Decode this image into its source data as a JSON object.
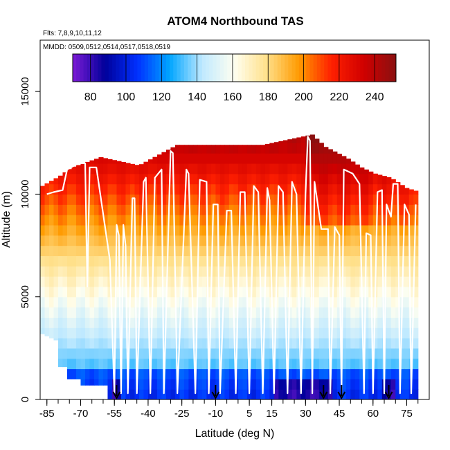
{
  "chart_data": {
    "type": "heatmap",
    "title": "ATOM4 Northbound TAS",
    "flights_note": "Flts: 7,8,9,10,11,12",
    "dates_note": "MMDD: 0509,0512,0514,0517,0518,0519",
    "xlabel": "Latitude (deg N)",
    "ylabel": "Altitude (m)",
    "xlim": [
      -88,
      85
    ],
    "ylim": [
      0,
      17500
    ],
    "x_ticks": [
      -85,
      -70,
      -55,
      -40,
      -25,
      -10,
      5,
      15,
      30,
      45,
      60,
      75
    ],
    "x_tick_labels": [
      "-85",
      "-70",
      "-55",
      "-40",
      "-25",
      "-10",
      "5",
      "15",
      "30",
      "45",
      "60",
      "75"
    ],
    "y_ticks": [
      0,
      5000,
      10000,
      15000
    ],
    "y_tick_labels": [
      "0",
      "5000",
      "10000",
      "15000"
    ],
    "colorbar": {
      "min": 70,
      "max": 252,
      "ticks": [
        80,
        100,
        120,
        140,
        160,
        180,
        200,
        220,
        240
      ],
      "tick_labels": [
        "80",
        "100",
        "120",
        "140",
        "160",
        "180",
        "200",
        "220",
        "240"
      ],
      "colors": [
        "#7d1bd6",
        "#00009a",
        "#0030ff",
        "#00a5ff",
        "#bfe9ff",
        "#fffff0",
        "#ffe08a",
        "#ff9a00",
        "#ff2000",
        "#d00000",
        "#8a1010"
      ]
    },
    "ceiling_profile": [
      {
        "lat": -88,
        "top": 10400
      },
      {
        "lat": -80,
        "top": 10900
      },
      {
        "lat": -75,
        "top": 11300
      },
      {
        "lat": -62,
        "top": 11800
      },
      {
        "lat": -45,
        "top": 11400
      },
      {
        "lat": -28,
        "top": 12400
      },
      {
        "lat": -10,
        "top": 12400
      },
      {
        "lat": 10,
        "top": 12400
      },
      {
        "lat": 32,
        "top": 12900
      },
      {
        "lat": 38,
        "top": 12300
      },
      {
        "lat": 47,
        "top": 11800
      },
      {
        "lat": 54,
        "top": 11300
      },
      {
        "lat": 60,
        "top": 11000
      },
      {
        "lat": 67,
        "top": 10800
      },
      {
        "lat": 74,
        "top": 10300
      },
      {
        "lat": 80,
        "top": 10100
      }
    ],
    "flight_track": [
      [
        -85,
        10000
      ],
      [
        -82,
        10100
      ],
      [
        -78,
        10200
      ],
      [
        -76,
        11200
      ],
      [
        -71,
        11500
      ],
      [
        -68,
        11500
      ],
      [
        -67,
        5500
      ],
      [
        -66,
        11300
      ],
      [
        -63,
        11300
      ],
      [
        -57,
        6800
      ],
      [
        -55,
        300
      ],
      [
        -54,
        8500
      ],
      [
        -53,
        8000
      ],
      [
        -52,
        300
      ],
      [
        -51,
        8500
      ],
      [
        -50,
        7500
      ],
      [
        -49,
        300
      ],
      [
        -47,
        9800
      ],
      [
        -46,
        9800
      ],
      [
        -45,
        300
      ],
      [
        -42,
        10600
      ],
      [
        -41,
        10800
      ],
      [
        -39,
        300
      ],
      [
        -37,
        10800
      ],
      [
        -34,
        11200
      ],
      [
        -33,
        300
      ],
      [
        -30,
        12100
      ],
      [
        -29,
        12000
      ],
      [
        -27,
        300
      ],
      [
        -23,
        11200
      ],
      [
        -22,
        11000
      ],
      [
        -19,
        300
      ],
      [
        -17,
        10700
      ],
      [
        -14,
        10600
      ],
      [
        -13,
        300
      ],
      [
        -11,
        9500
      ],
      [
        -9,
        9500
      ],
      [
        -8,
        300
      ],
      [
        -5,
        9200
      ],
      [
        -3,
        9200
      ],
      [
        -1,
        300
      ],
      [
        1,
        10100
      ],
      [
        3,
        10100
      ],
      [
        5,
        300
      ],
      [
        7,
        10400
      ],
      [
        9,
        10100
      ],
      [
        11,
        300
      ],
      [
        13,
        10300
      ],
      [
        14,
        9700
      ],
      [
        16,
        300
      ],
      [
        18,
        10400
      ],
      [
        20,
        10100
      ],
      [
        22,
        300
      ],
      [
        24,
        10600
      ],
      [
        26,
        10000
      ],
      [
        28,
        300
      ],
      [
        30,
        10000
      ],
      [
        31,
        12800
      ],
      [
        32,
        12600
      ],
      [
        33,
        300
      ],
      [
        34,
        10600
      ],
      [
        37,
        8300
      ],
      [
        40,
        8300
      ],
      [
        41,
        300
      ],
      [
        43,
        8400
      ],
      [
        45,
        8000
      ],
      [
        46,
        300
      ],
      [
        47,
        11200
      ],
      [
        51,
        11000
      ],
      [
        54,
        10500
      ],
      [
        56,
        300
      ],
      [
        57,
        8100
      ],
      [
        59,
        8000
      ],
      [
        60,
        300
      ],
      [
        62,
        10100
      ],
      [
        64,
        10200
      ],
      [
        65,
        300
      ],
      [
        66,
        9500
      ],
      [
        68,
        8900
      ],
      [
        69,
        10500
      ],
      [
        71,
        10500
      ],
      [
        72,
        300
      ],
      [
        74,
        9500
      ],
      [
        76,
        9000
      ],
      [
        77,
        300
      ],
      [
        79,
        9500
      ]
    ],
    "profile_markers_lat": [
      -54,
      -10,
      38,
      46,
      67
    ],
    "legend_placement": "top"
  }
}
